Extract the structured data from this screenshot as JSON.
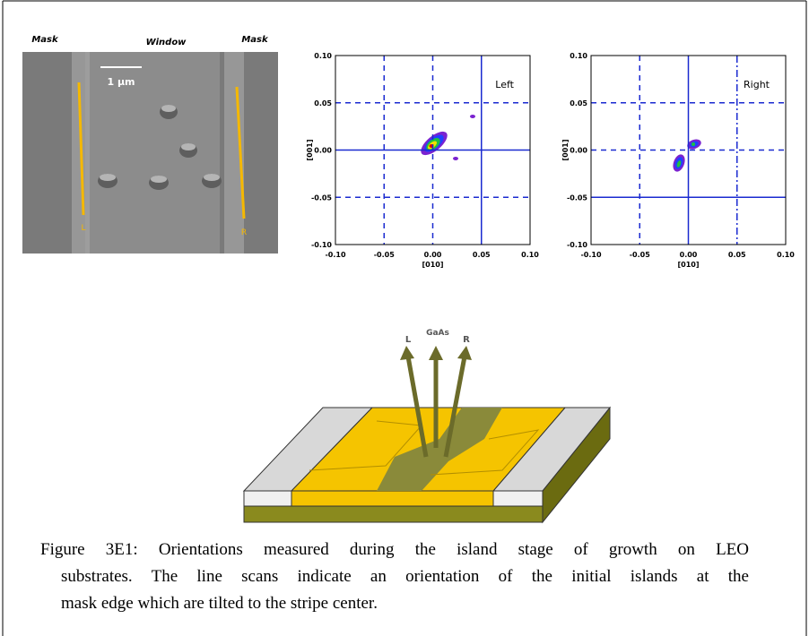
{
  "sem_image": {
    "mask_left": "Mask",
    "window": "Window",
    "mask_right": "Mask",
    "scale_bar": "1 µm",
    "line_left": "L",
    "line_right": "R"
  },
  "plots": [
    {
      "title": "Left",
      "xlabel": "[010]",
      "ylabel": "[001]",
      "xlim": [
        -0.1,
        0.1
      ],
      "ylim": [
        -0.1,
        0.1
      ],
      "xticks": [
        {
          "value": -0.1,
          "label": "-0.10"
        },
        {
          "value": -0.05,
          "label": "-0.05"
        },
        {
          "value": 0,
          "label": "0.00"
        },
        {
          "value": 0.05,
          "label": "0.05"
        },
        {
          "value": 0.1,
          "label": "0.10"
        }
      ],
      "yticks": [
        {
          "value": -0.1,
          "label": "-0.10"
        },
        {
          "value": -0.05,
          "label": "-0.05"
        },
        {
          "value": 0,
          "label": "0.00"
        },
        {
          "value": 0.05,
          "label": "0.05"
        },
        {
          "value": 0.1,
          "label": "0.10"
        }
      ]
    },
    {
      "title": "Right",
      "xlabel": "[010]",
      "ylabel": "[001]",
      "xlim": [
        -0.1,
        0.1
      ],
      "ylim": [
        -0.1,
        0.1
      ],
      "xticks": [
        {
          "value": -0.1,
          "label": "-0.10"
        },
        {
          "value": -0.05,
          "label": "-0.05"
        },
        {
          "value": 0,
          "label": "0.00"
        },
        {
          "value": 0.05,
          "label": "0.05"
        },
        {
          "value": 0.1,
          "label": "0.10"
        }
      ],
      "yticks": [
        {
          "value": -0.1,
          "label": "-0.10"
        },
        {
          "value": -0.05,
          "label": "-0.05"
        },
        {
          "value": 0,
          "label": "0.00"
        },
        {
          "value": 0.05,
          "label": "0.05"
        },
        {
          "value": 0.1,
          "label": "0.10"
        }
      ]
    }
  ],
  "diagram": {
    "arrow_left": "L",
    "arrow_center": "GaAs",
    "arrow_right": "R"
  },
  "caption": {
    "lines": [
      "Figure 3E1: Orientations measured during the island stage of growth on LEO",
      "substrates. The line scans indicate an orientation of the initial islands at the",
      "mask edge which are tilted to the stripe center."
    ]
  }
}
